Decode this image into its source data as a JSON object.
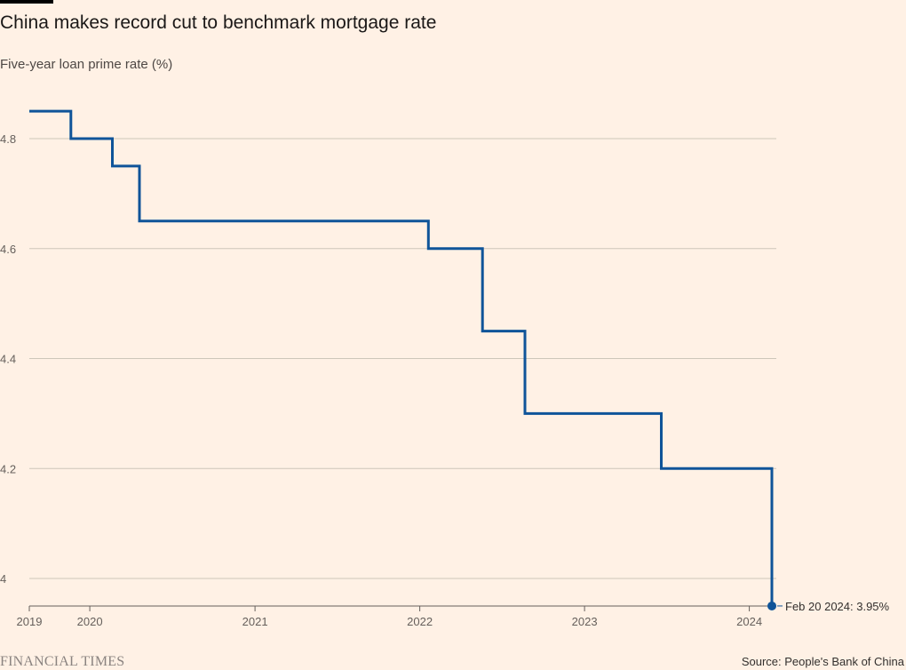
{
  "header": {
    "title": "China makes record cut to benchmark mortgage rate",
    "subtitle": "Five-year loan prime rate (%)"
  },
  "footer": {
    "brand": "FINANCIAL TIMES",
    "source": "Source: People's Bank of China"
  },
  "colors": {
    "background": "#FFF1E5",
    "line": "#0F5499",
    "grid": "#CEC6B9",
    "text": "#33302E"
  },
  "chart_data": {
    "type": "line",
    "title": "China makes record cut to benchmark mortgage rate",
    "subtitle": "Five-year loan prime rate (%)",
    "xlabel": "",
    "ylabel": "",
    "line_style": "step",
    "ylim": [
      3.95,
      4.9
    ],
    "xlim": [
      "2019-08-20",
      "2024-02-20"
    ],
    "y_ticks": [
      4.0,
      4.2,
      4.4,
      4.6,
      4.8
    ],
    "y_tick_labels": [
      "4",
      "4.2",
      "4.4",
      "4.6",
      "4.8"
    ],
    "x_ticks": [
      "2019-08-20",
      "2020-01-01",
      "2021-01-01",
      "2022-01-01",
      "2023-01-01",
      "2024-01-01"
    ],
    "x_tick_labels": [
      "2019",
      "2020",
      "2021",
      "2022",
      "2023",
      "2024"
    ],
    "grid": true,
    "series": [
      {
        "values": [
          {
            "x": "2019-08-20",
            "y": 4.85
          },
          {
            "x": "2019-11-20",
            "y": 4.8
          },
          {
            "x": "2020-02-20",
            "y": 4.75
          },
          {
            "x": "2020-04-20",
            "y": 4.65
          },
          {
            "x": "2022-01-20",
            "y": 4.6
          },
          {
            "x": "2022-05-20",
            "y": 4.45
          },
          {
            "x": "2022-08-22",
            "y": 4.3
          },
          {
            "x": "2023-06-20",
            "y": 4.2
          },
          {
            "x": "2024-02-20",
            "y": 3.95
          }
        ]
      }
    ],
    "annotation": {
      "x": "2024-02-20",
      "y": 3.95,
      "text": "Feb 20 2024: 3.95%"
    }
  }
}
